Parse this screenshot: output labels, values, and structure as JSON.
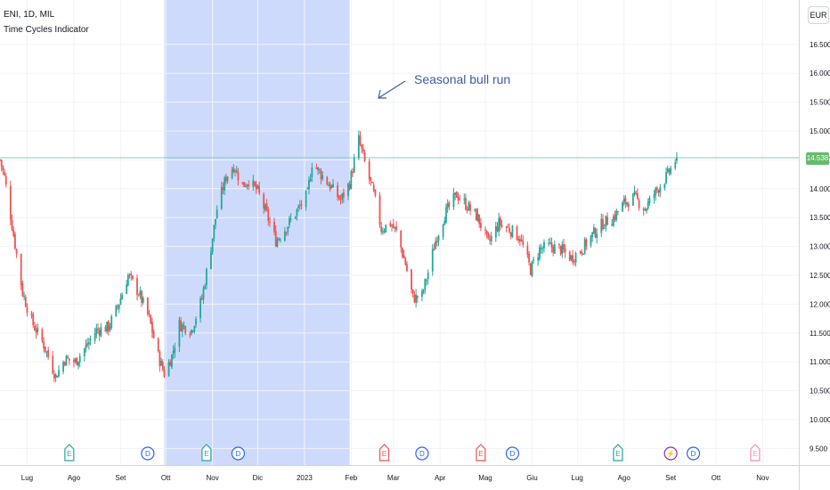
{
  "header": {
    "symbol_line": "ENI, 1D, MIL",
    "indicator_name": "Time Cycles Indicator"
  },
  "currency_button": "EUR",
  "last_price_label": "14.538",
  "colors": {
    "up": "#26a69a",
    "down": "#ef5350",
    "highlight_band": "#c5d3fb",
    "price_line": "#80cbc4",
    "earnings_green": "#26a69a",
    "earnings_red": "#ef5350",
    "earnings_pink": "#f48fb1",
    "dividend_blue": "#2962ff",
    "split_purple": "#9c27b0"
  },
  "chart_data": {
    "type": "candlestick",
    "y_axis": {
      "ticks": [
        "9.500",
        "10.000",
        "10.500",
        "11.000",
        "11.500",
        "12.000",
        "12.500",
        "13.000",
        "13.500",
        "14.000",
        "14.500",
        "15.000",
        "15.500",
        "16.000",
        "16.500"
      ],
      "range": [
        9.3,
        16.8
      ]
    },
    "x_axis": {
      "ticks": [
        "Lug",
        "Ago",
        "Set",
        "Ott",
        "Nov",
        "Dic",
        "2023",
        "Feb",
        "Mar",
        "Apr",
        "Mag",
        "Giu",
        "Lug",
        "Ago",
        "Set",
        "Ott",
        "Nov"
      ],
      "start": "2022-06-13",
      "end": "2023-11-25"
    },
    "highlight": {
      "from": "2022-09-30",
      "to": "2023-01-31"
    },
    "annotation": {
      "text": "Seasonal bull run"
    },
    "last_price": 14.538,
    "price_anchors": [
      [
        "2022-06-13",
        14.5
      ],
      [
        "2022-06-16",
        14.2
      ],
      [
        "2022-06-22",
        13.2
      ],
      [
        "2022-06-28",
        12.2
      ],
      [
        "2022-07-04",
        11.7
      ],
      [
        "2022-07-12",
        11.3
      ],
      [
        "2022-07-20",
        10.75
      ],
      [
        "2022-07-26",
        11.05
      ],
      [
        "2022-08-02",
        11.0
      ],
      [
        "2022-08-10",
        11.3
      ],
      [
        "2022-08-16",
        11.55
      ],
      [
        "2022-08-24",
        11.6
      ],
      [
        "2022-08-30",
        11.95
      ],
      [
        "2022-09-06",
        12.5
      ],
      [
        "2022-09-13",
        12.2
      ],
      [
        "2022-09-20",
        11.75
      ],
      [
        "2022-09-26",
        11.1
      ],
      [
        "2022-09-30",
        10.8
      ],
      [
        "2022-10-05",
        11.1
      ],
      [
        "2022-10-10",
        11.65
      ],
      [
        "2022-10-18",
        11.55
      ],
      [
        "2022-10-25",
        12.1
      ],
      [
        "2022-10-31",
        13.0
      ],
      [
        "2022-11-04",
        13.65
      ],
      [
        "2022-11-10",
        14.2
      ],
      [
        "2022-11-15",
        14.4
      ],
      [
        "2022-11-21",
        14.05
      ],
      [
        "2022-11-25",
        14.15
      ],
      [
        "2022-12-01",
        13.95
      ],
      [
        "2022-12-07",
        13.55
      ],
      [
        "2022-12-13",
        13.1
      ],
      [
        "2022-12-19",
        13.3
      ],
      [
        "2022-12-28",
        13.65
      ],
      [
        "2023-01-03",
        13.9
      ],
      [
        "2023-01-06",
        14.45
      ],
      [
        "2023-01-12",
        14.25
      ],
      [
        "2023-01-18",
        14.05
      ],
      [
        "2023-01-25",
        13.8
      ],
      [
        "2023-01-31",
        14.1
      ],
      [
        "2023-02-06",
        14.85
      ],
      [
        "2023-02-10",
        14.45
      ],
      [
        "2023-02-16",
        13.9
      ],
      [
        "2023-02-21",
        13.3
      ],
      [
        "2023-02-27",
        13.4
      ],
      [
        "2023-03-03",
        13.25
      ],
      [
        "2023-03-09",
        12.7
      ],
      [
        "2023-03-14",
        12.1
      ],
      [
        "2023-03-20",
        12.15
      ],
      [
        "2023-03-24",
        12.55
      ],
      [
        "2023-03-29",
        13.1
      ],
      [
        "2023-04-04",
        13.55
      ],
      [
        "2023-04-12",
        13.9
      ],
      [
        "2023-04-19",
        13.7
      ],
      [
        "2023-04-26",
        13.5
      ],
      [
        "2023-05-03",
        13.05
      ],
      [
        "2023-05-10",
        13.4
      ],
      [
        "2023-05-17",
        13.3
      ],
      [
        "2023-05-24",
        13.15
      ],
      [
        "2023-05-31",
        12.6
      ],
      [
        "2023-06-06",
        12.95
      ],
      [
        "2023-06-13",
        13.0
      ],
      [
        "2023-06-20",
        12.95
      ],
      [
        "2023-06-27",
        12.8
      ],
      [
        "2023-07-04",
        12.95
      ],
      [
        "2023-07-11",
        13.2
      ],
      [
        "2023-07-18",
        13.4
      ],
      [
        "2023-07-25",
        13.5
      ],
      [
        "2023-08-01",
        13.75
      ],
      [
        "2023-08-08",
        13.85
      ],
      [
        "2023-08-15",
        13.65
      ],
      [
        "2023-08-22",
        13.95
      ],
      [
        "2023-08-29",
        14.2
      ],
      [
        "2023-09-05",
        14.538
      ]
    ],
    "events": [
      {
        "type": "earnings",
        "letter": "E",
        "date": "2022-07-29",
        "tone": "green"
      },
      {
        "type": "dividend",
        "letter": "D",
        "date": "2022-09-19",
        "tone": "blue"
      },
      {
        "type": "earnings",
        "letter": "E",
        "date": "2022-10-28",
        "tone": "green"
      },
      {
        "type": "dividend",
        "letter": "D",
        "date": "2022-11-18",
        "tone": "blue"
      },
      {
        "type": "earnings",
        "letter": "E",
        "date": "2023-02-23",
        "tone": "red"
      },
      {
        "type": "dividend",
        "letter": "D",
        "date": "2023-03-20",
        "tone": "blue"
      },
      {
        "type": "earnings",
        "letter": "E",
        "date": "2023-04-28",
        "tone": "red"
      },
      {
        "type": "dividend",
        "letter": "D",
        "date": "2023-05-19",
        "tone": "blue"
      },
      {
        "type": "earnings",
        "letter": "E",
        "date": "2023-07-28",
        "tone": "green"
      },
      {
        "type": "split",
        "letter": "⚡",
        "date": "2023-09-01",
        "tone": "purple"
      },
      {
        "type": "dividend",
        "letter": "D",
        "date": "2023-09-16",
        "tone": "blue"
      },
      {
        "type": "earnings",
        "letter": "E",
        "date": "2023-10-27",
        "tone": "pink"
      }
    ]
  }
}
